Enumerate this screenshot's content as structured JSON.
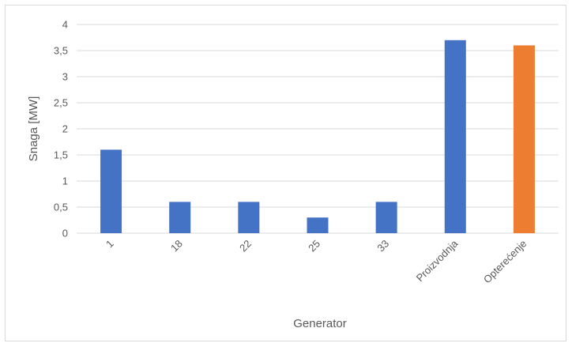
{
  "chart_data": {
    "type": "bar",
    "title": "",
    "xlabel": "Generator",
    "ylabel": "Snaga [MW]",
    "ylim": [
      0,
      4
    ],
    "y_ticks": [
      0,
      0.5,
      1,
      1.5,
      2,
      2.5,
      3,
      3.5,
      4
    ],
    "y_tick_labels": [
      "0",
      "0,5",
      "1",
      "1,5",
      "2",
      "2,5",
      "3",
      "3,5",
      "4"
    ],
    "grid": true,
    "legend": "none",
    "categories": [
      "1",
      "18",
      "22",
      "25",
      "33",
      "Proizvodnja",
      "Opterećenje"
    ],
    "values": [
      1.6,
      0.6,
      0.6,
      0.3,
      0.6,
      3.7,
      3.6
    ],
    "bar_colors": [
      "#4472c4",
      "#4472c4",
      "#4472c4",
      "#4472c4",
      "#4472c4",
      "#4472c4",
      "#ed7d31"
    ],
    "gridline_color": "#d9d9d9"
  }
}
